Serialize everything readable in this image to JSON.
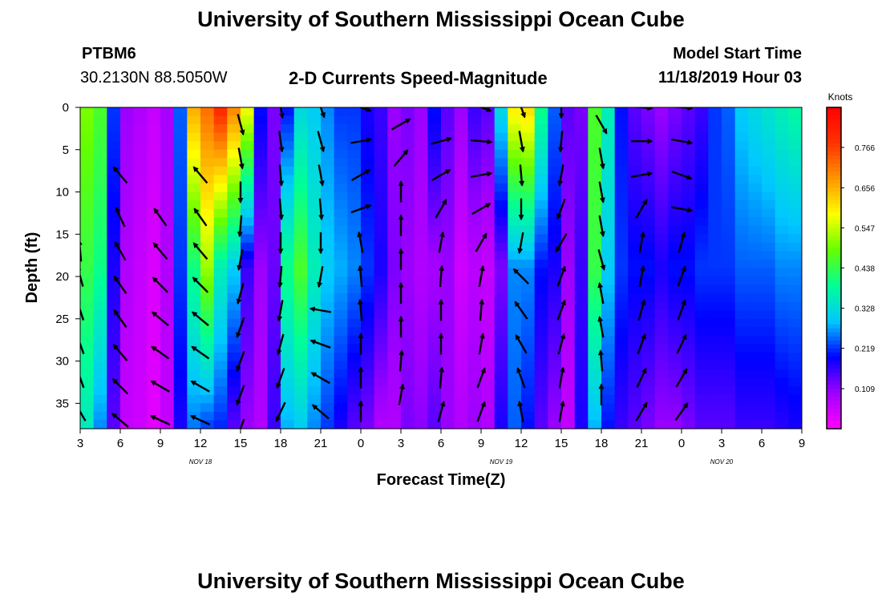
{
  "header": {
    "title_top": "University of Southern Mississippi Ocean Cube",
    "station": "PTBM6",
    "coords": "30.2130N 88.5050W",
    "subtitle": "2-D Currents Speed-Magnitude",
    "model_start_label": "Model Start Time",
    "model_start_value": "11/18/2019 Hour 03",
    "title_bottom": "University of Southern Mississippi Ocean Cube"
  },
  "chart_data": {
    "type": "heatmap",
    "title": "2-D Currents Speed-Magnitude",
    "xlabel": "Forecast Time(Z)",
    "ylabel": "Depth (ft)",
    "x_ticks": [
      "3",
      "6",
      "9",
      "12",
      "15",
      "18",
      "21",
      "0",
      "3",
      "6",
      "9",
      "12",
      "15",
      "18",
      "21",
      "0",
      "3",
      "6",
      "9"
    ],
    "x_range_hours": [
      0,
      54
    ],
    "date_labels": [
      {
        "text": "NOV 18",
        "at_hour": 9
      },
      {
        "text": "NOV 19",
        "at_hour": 31.5
      },
      {
        "text": "NOV 20",
        "at_hour": 48
      }
    ],
    "y_ticks": [
      0,
      5,
      10,
      15,
      20,
      25,
      30,
      35
    ],
    "ylim": [
      0,
      38
    ],
    "y_inverted": true,
    "colorbar": {
      "label": "Knots",
      "ticks": [
        0.109,
        0.219,
        0.328,
        0.438,
        0.547,
        0.656,
        0.766
      ],
      "range": [
        0,
        0.875
      ],
      "colors": [
        "#ff00ff",
        "#a000ff",
        "#0000ff",
        "#00c8ff",
        "#00ff96",
        "#64ff00",
        "#ffff00",
        "#ff9600",
        "#ff3200",
        "#ff0000"
      ]
    },
    "speed_columns": [
      {
        "hour": 0.5,
        "top": 0.5,
        "mid": 0.44,
        "bot": 0.35
      },
      {
        "hour": 1.5,
        "top": 0.46,
        "mid": 0.4,
        "bot": 0.26
      },
      {
        "hour": 2.5,
        "top": 0.22,
        "mid": 0.18,
        "bot": 0.14
      },
      {
        "hour": 3.5,
        "top": 0.1,
        "mid": 0.08,
        "bot": 0.06
      },
      {
        "hour": 4.5,
        "top": 0.08,
        "mid": 0.06,
        "bot": 0.05
      },
      {
        "hour": 5.5,
        "top": 0.06,
        "mid": 0.04,
        "bot": 0.03
      },
      {
        "hour": 6.5,
        "top": 0.09,
        "mid": 0.08,
        "bot": 0.06
      },
      {
        "hour": 7.5,
        "top": 0.24,
        "mid": 0.22,
        "bot": 0.18
      },
      {
        "hour": 8.5,
        "top": 0.66,
        "mid": 0.4,
        "bot": 0.25
      },
      {
        "hour": 9.5,
        "top": 0.72,
        "mid": 0.52,
        "bot": 0.22
      },
      {
        "hour": 10.5,
        "top": 0.8,
        "mid": 0.36,
        "bot": 0.21
      },
      {
        "hour": 11.5,
        "top": 0.7,
        "mid": 0.3,
        "bot": 0.14
      },
      {
        "hour": 12.5,
        "top": 0.58,
        "mid": 0.16,
        "bot": 0.1
      },
      {
        "hour": 13.5,
        "top": 0.2,
        "mid": 0.1,
        "bot": 0.08
      },
      {
        "hour": 14.5,
        "top": 0.12,
        "mid": 0.13,
        "bot": 0.16
      },
      {
        "hour": 15.5,
        "top": 0.2,
        "mid": 0.4,
        "bot": 0.28
      },
      {
        "hour": 16.5,
        "top": 0.32,
        "mid": 0.46,
        "bot": 0.3
      },
      {
        "hour": 17.5,
        "top": 0.3,
        "mid": 0.36,
        "bot": 0.26
      },
      {
        "hour": 18.5,
        "top": 0.26,
        "mid": 0.3,
        "bot": 0.22
      },
      {
        "hour": 19.5,
        "top": 0.22,
        "mid": 0.28,
        "bot": 0.18
      },
      {
        "hour": 20.5,
        "top": 0.22,
        "mid": 0.26,
        "bot": 0.14
      },
      {
        "hour": 21.5,
        "top": 0.18,
        "mid": 0.22,
        "bot": 0.12
      },
      {
        "hour": 22.5,
        "top": 0.16,
        "mid": 0.18,
        "bot": 0.08
      },
      {
        "hour": 23.5,
        "top": 0.1,
        "mid": 0.12,
        "bot": 0.08
      },
      {
        "hour": 24.5,
        "top": 0.12,
        "mid": 0.1,
        "bot": 0.12
      },
      {
        "hour": 25.5,
        "top": 0.1,
        "mid": 0.08,
        "bot": 0.11
      },
      {
        "hour": 26.5,
        "top": 0.2,
        "mid": 0.09,
        "bot": 0.14
      },
      {
        "hour": 27.5,
        "top": 0.14,
        "mid": 0.1,
        "bot": 0.1
      },
      {
        "hour": 28.5,
        "top": 0.1,
        "mid": 0.05,
        "bot": 0.08
      },
      {
        "hour": 29.5,
        "top": 0.16,
        "mid": 0.07,
        "bot": 0.1
      },
      {
        "hour": 30.5,
        "top": 0.14,
        "mid": 0.06,
        "bot": 0.08
      },
      {
        "hour": 31.5,
        "top": 0.32,
        "mid": 0.12,
        "bot": 0.18
      },
      {
        "hour": 32.5,
        "top": 0.6,
        "mid": 0.26,
        "bot": 0.24
      },
      {
        "hour": 33.5,
        "top": 0.62,
        "mid": 0.26,
        "bot": 0.2
      },
      {
        "hour": 34.5,
        "top": 0.4,
        "mid": 0.2,
        "bot": 0.14
      },
      {
        "hour": 35.5,
        "top": 0.24,
        "mid": 0.18,
        "bot": 0.1
      },
      {
        "hour": 36.5,
        "top": 0.14,
        "mid": 0.1,
        "bot": 0.06
      },
      {
        "hour": 37.5,
        "top": 0.12,
        "mid": 0.16,
        "bot": 0.18
      },
      {
        "hour": 38.5,
        "top": 0.46,
        "mid": 0.44,
        "bot": 0.28
      },
      {
        "hour": 39.5,
        "top": 0.36,
        "mid": 0.3,
        "bot": 0.2
      },
      {
        "hour": 40.5,
        "top": 0.2,
        "mid": 0.22,
        "bot": 0.16
      },
      {
        "hour": 41.5,
        "top": 0.14,
        "mid": 0.2,
        "bot": 0.14
      },
      {
        "hour": 42.5,
        "top": 0.12,
        "mid": 0.2,
        "bot": 0.12
      },
      {
        "hour": 43.5,
        "top": 0.1,
        "mid": 0.18,
        "bot": 0.1
      },
      {
        "hour": 44.5,
        "top": 0.12,
        "mid": 0.2,
        "bot": 0.1
      },
      {
        "hour": 45.5,
        "top": 0.14,
        "mid": 0.2,
        "bot": 0.12
      },
      {
        "hour": 46.5,
        "top": 0.16,
        "mid": 0.22,
        "bot": 0.14
      },
      {
        "hour": 47.5,
        "top": 0.22,
        "mid": 0.22,
        "bot": 0.14
      },
      {
        "hour": 48.5,
        "top": 0.24,
        "mid": 0.22,
        "bot": 0.14
      },
      {
        "hour": 49.5,
        "top": 0.3,
        "mid": 0.24,
        "bot": 0.16
      },
      {
        "hour": 50.5,
        "top": 0.32,
        "mid": 0.24,
        "bot": 0.16
      },
      {
        "hour": 51.5,
        "top": 0.34,
        "mid": 0.24,
        "bot": 0.16
      },
      {
        "hour": 52.5,
        "top": 0.36,
        "mid": 0.26,
        "bot": 0.17
      },
      {
        "hour": 53.5,
        "top": 0.38,
        "mid": 0.26,
        "bot": 0.18
      }
    ],
    "vectors": [
      {
        "hour": 0,
        "depths": [
          17,
          20,
          24,
          28,
          32,
          36
        ],
        "dir": [
          -5,
          -15,
          -18,
          -20,
          -20,
          -30
        ]
      },
      {
        "hour": 3,
        "depths": [
          8,
          13,
          17,
          21,
          25,
          29,
          33,
          37
        ],
        "dir": [
          -40,
          -25,
          -30,
          -35,
          -35,
          -40,
          -45,
          -50
        ]
      },
      {
        "hour": 6,
        "depths": [
          13,
          17,
          21,
          25,
          29,
          33,
          37
        ],
        "dir": [
          -35,
          -40,
          -45,
          -50,
          -55,
          -60,
          -65
        ]
      },
      {
        "hour": 9,
        "depths": [
          8,
          13,
          17,
          21,
          25,
          29,
          33,
          37
        ],
        "dir": [
          -40,
          -35,
          -40,
          -45,
          -50,
          -55,
          -60,
          -65
        ]
      },
      {
        "hour": 12,
        "depths": [
          2,
          6,
          10,
          14,
          18,
          22,
          26,
          30,
          34,
          38
        ],
        "dir": [
          165,
          170,
          180,
          185,
          190,
          195,
          200,
          200,
          200,
          200
        ]
      },
      {
        "hour": 15,
        "depths": [
          0,
          4,
          8,
          12,
          16,
          20,
          24,
          28,
          32,
          36
        ],
        "dir": [
          170,
          172,
          175,
          175,
          180,
          185,
          190,
          195,
          200,
          205
        ]
      },
      {
        "hour": 18,
        "depths": [
          0,
          4,
          8,
          12,
          16,
          20,
          24,
          28,
          32,
          36
        ],
        "dir": [
          160,
          165,
          170,
          175,
          180,
          190,
          -80,
          -70,
          -60,
          -50
        ]
      },
      {
        "hour": 21,
        "depths": [
          0,
          4,
          8,
          12,
          16,
          20,
          24,
          28,
          32,
          36
        ],
        "dir": [
          110,
          80,
          60,
          70,
          -10,
          -5,
          -5,
          0,
          0,
          0
        ]
      },
      {
        "hour": 24,
        "depths": [
          2,
          6,
          10,
          14,
          18,
          22,
          26,
          30,
          34
        ],
        "dir": [
          60,
          40,
          0,
          0,
          0,
          0,
          0,
          5,
          10
        ]
      },
      {
        "hour": 27,
        "depths": [
          4,
          8,
          12,
          16,
          20,
          24,
          28,
          32,
          36
        ],
        "dir": [
          75,
          60,
          30,
          10,
          5,
          0,
          0,
          5,
          15
        ]
      },
      {
        "hour": 30,
        "depths": [
          0,
          4,
          8,
          12,
          16,
          20,
          24,
          28,
          32,
          36
        ],
        "dir": [
          110,
          95,
          80,
          60,
          30,
          10,
          5,
          10,
          20,
          20
        ]
      },
      {
        "hour": 33,
        "depths": [
          0,
          4,
          8,
          12,
          16,
          20,
          24,
          28,
          32,
          36
        ],
        "dir": [
          160,
          170,
          175,
          180,
          190,
          -45,
          -35,
          -30,
          -20,
          -10
        ]
      },
      {
        "hour": 36,
        "depths": [
          0,
          4,
          8,
          12,
          16,
          20,
          24,
          28,
          32,
          36
        ],
        "dir": [
          180,
          185,
          190,
          200,
          210,
          20,
          20,
          15,
          10,
          10
        ]
      },
      {
        "hour": 39,
        "depths": [
          2,
          6,
          10,
          14,
          18,
          22,
          26,
          30,
          34
        ],
        "dir": [
          150,
          170,
          170,
          170,
          165,
          -10,
          -10,
          -5,
          0
        ]
      },
      {
        "hour": 42,
        "depths": [
          0,
          4,
          8,
          12,
          16,
          20,
          24,
          28,
          32,
          36
        ],
        "dir": [
          95,
          90,
          80,
          30,
          10,
          10,
          15,
          20,
          25,
          30
        ]
      },
      {
        "hour": 45,
        "depths": [
          0,
          4,
          8,
          12,
          16,
          20,
          24,
          28,
          32,
          36
        ],
        "dir": [
          95,
          100,
          110,
          100,
          15,
          20,
          20,
          25,
          30,
          35
        ]
      }
    ]
  }
}
